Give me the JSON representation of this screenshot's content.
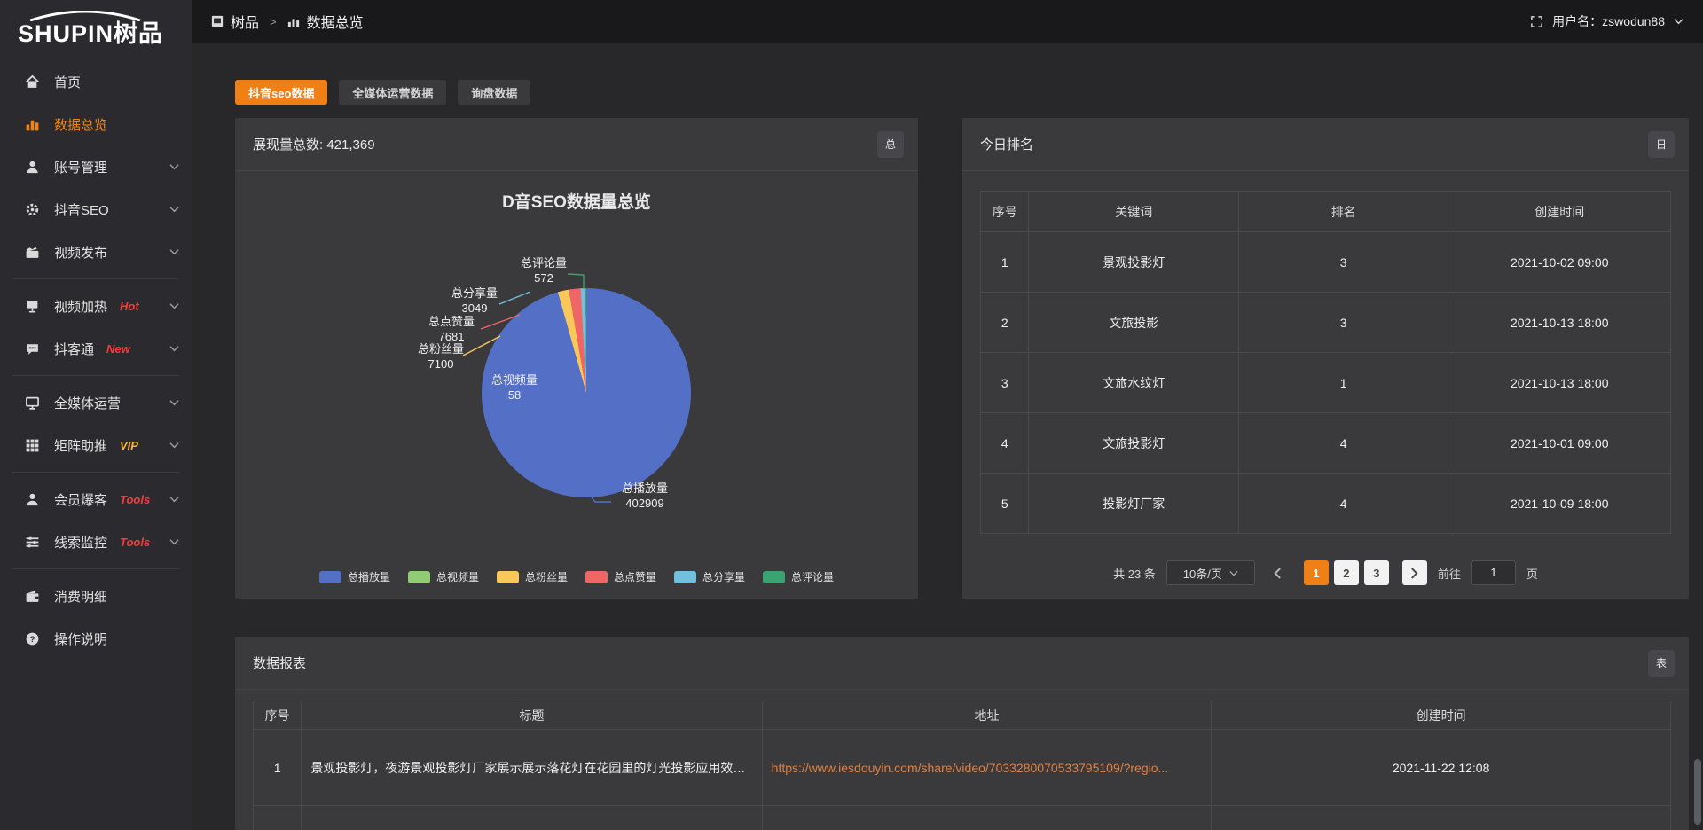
{
  "header": {
    "breadcrumb_root": "树品",
    "breadcrumb_sep": ">",
    "breadcrumb_current": "数据总览",
    "user_label": "用户名：zswodun88"
  },
  "sidebar": {
    "logo_en": "SHUPIN",
    "logo_cn": "树品",
    "items": [
      {
        "label": "首页",
        "icon": "home-icon"
      },
      {
        "label": "数据总览",
        "icon": "bar-chart-icon",
        "active": true
      },
      {
        "label": "账号管理",
        "icon": "user-icon",
        "expandable": true
      },
      {
        "label": "抖音SEO",
        "icon": "gear-icon",
        "expandable": true
      },
      {
        "label": "视频发布",
        "icon": "video-publish-icon",
        "expandable": true,
        "divider_after": true
      },
      {
        "label": "视频加热",
        "icon": "screen-icon",
        "badge": "Hot",
        "badge_color": "#f63c3c",
        "expandable": true
      },
      {
        "label": "抖客通",
        "icon": "chat-icon",
        "badge": "New",
        "badge_color": "#f63c3c",
        "expandable": true,
        "divider_after": true
      },
      {
        "label": "全媒体运营",
        "icon": "monitor-icon",
        "expandable": true
      },
      {
        "label": "矩阵助推",
        "icon": "grid-icon",
        "badge": "VIP",
        "badge_color": "#f6b53d",
        "expandable": true,
        "divider_after": true
      },
      {
        "label": "会员爆客",
        "icon": "member-icon",
        "badge": "Tools",
        "badge_color": "#f63c3c",
        "expandable": true
      },
      {
        "label": "线索监控",
        "icon": "sliders-icon",
        "badge": "Tools",
        "badge_color": "#f63c3c",
        "expandable": true,
        "divider_after": true
      },
      {
        "label": "消费明细",
        "icon": "wallet-icon"
      },
      {
        "label": "操作说明",
        "icon": "question-icon"
      }
    ]
  },
  "tabs": [
    {
      "label": "抖音seo数据",
      "active": true
    },
    {
      "label": "全媒体运营数据",
      "active": false
    },
    {
      "label": "询盘数据",
      "active": false
    }
  ],
  "colors": {
    "accent": "#f07f16",
    "link": "#dd8145"
  },
  "overview_panel": {
    "header_text": "展现量总数: 421,369",
    "corner_button": "总"
  },
  "chart_data": {
    "type": "pie",
    "title": "D音SEO数据量总览",
    "total": 421369,
    "legend_position": "bottom",
    "series": [
      {
        "name": "总播放量",
        "value": 402909,
        "color": "#5470c6"
      },
      {
        "name": "总视频量",
        "value": 58,
        "color": "#91cc75"
      },
      {
        "name": "总粉丝量",
        "value": 7100,
        "color": "#fac858"
      },
      {
        "name": "总点赞量",
        "value": 7681,
        "color": "#ee6666"
      },
      {
        "name": "总分享量",
        "value": 3049,
        "color": "#73c0de"
      },
      {
        "name": "总评论量",
        "value": 572,
        "color": "#3ba272"
      }
    ]
  },
  "today_ranking": {
    "title": "今日排名",
    "corner_button": "日",
    "columns": [
      "序号",
      "关键词",
      "排名",
      "创建时间"
    ],
    "rows": [
      [
        "1",
        "景观投影灯",
        "3",
        "2021-10-02 09:00"
      ],
      [
        "2",
        "文旅投影",
        "3",
        "2021-10-13 18:00"
      ],
      [
        "3",
        "文旅水纹灯",
        "1",
        "2021-10-13 18:00"
      ],
      [
        "4",
        "文旅投影灯",
        "4",
        "2021-10-01 09:00"
      ],
      [
        "5",
        "投影灯厂家",
        "4",
        "2021-10-09 18:00"
      ]
    ],
    "pagination": {
      "total_text": "共 23 条",
      "page_size": "10条/页",
      "pages": [
        "1",
        "2",
        "3"
      ],
      "active_page": "1",
      "goto_label": "前往",
      "goto_value": "1",
      "goto_suffix": "页"
    }
  },
  "report_panel": {
    "title": "数据报表",
    "corner_button": "表",
    "columns": [
      "序号",
      "标题",
      "地址",
      "创建时间"
    ],
    "rows": [
      {
        "index": "1",
        "title": "景观投影灯，夜游景观投影灯厂家展示展示落花灯在花园里的灯光投影应用效果 #",
        "url": "https://www.iesdouyin.com/share/video/7033280070533795109/?regio...",
        "time": "2021-11-22 12:08"
      }
    ]
  }
}
